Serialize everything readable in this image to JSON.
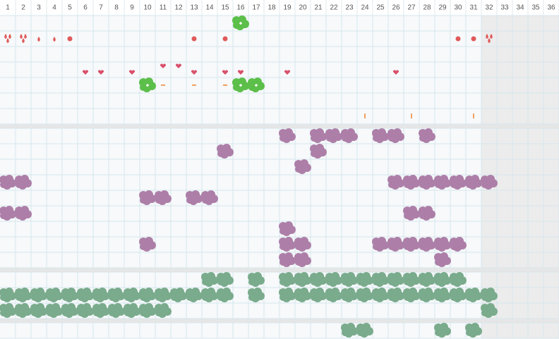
{
  "columns": [
    "1",
    "2",
    "3",
    "4",
    "5",
    "6",
    "7",
    "8",
    "9",
    "10",
    "11",
    "12",
    "13",
    "14",
    "15",
    "16",
    "17",
    "18",
    "19",
    "20",
    "21",
    "22",
    "23",
    "24",
    "25",
    "26",
    "27",
    "28",
    "29",
    "30",
    "31",
    "32",
    "33",
    "34",
    "35",
    "36"
  ]
}
